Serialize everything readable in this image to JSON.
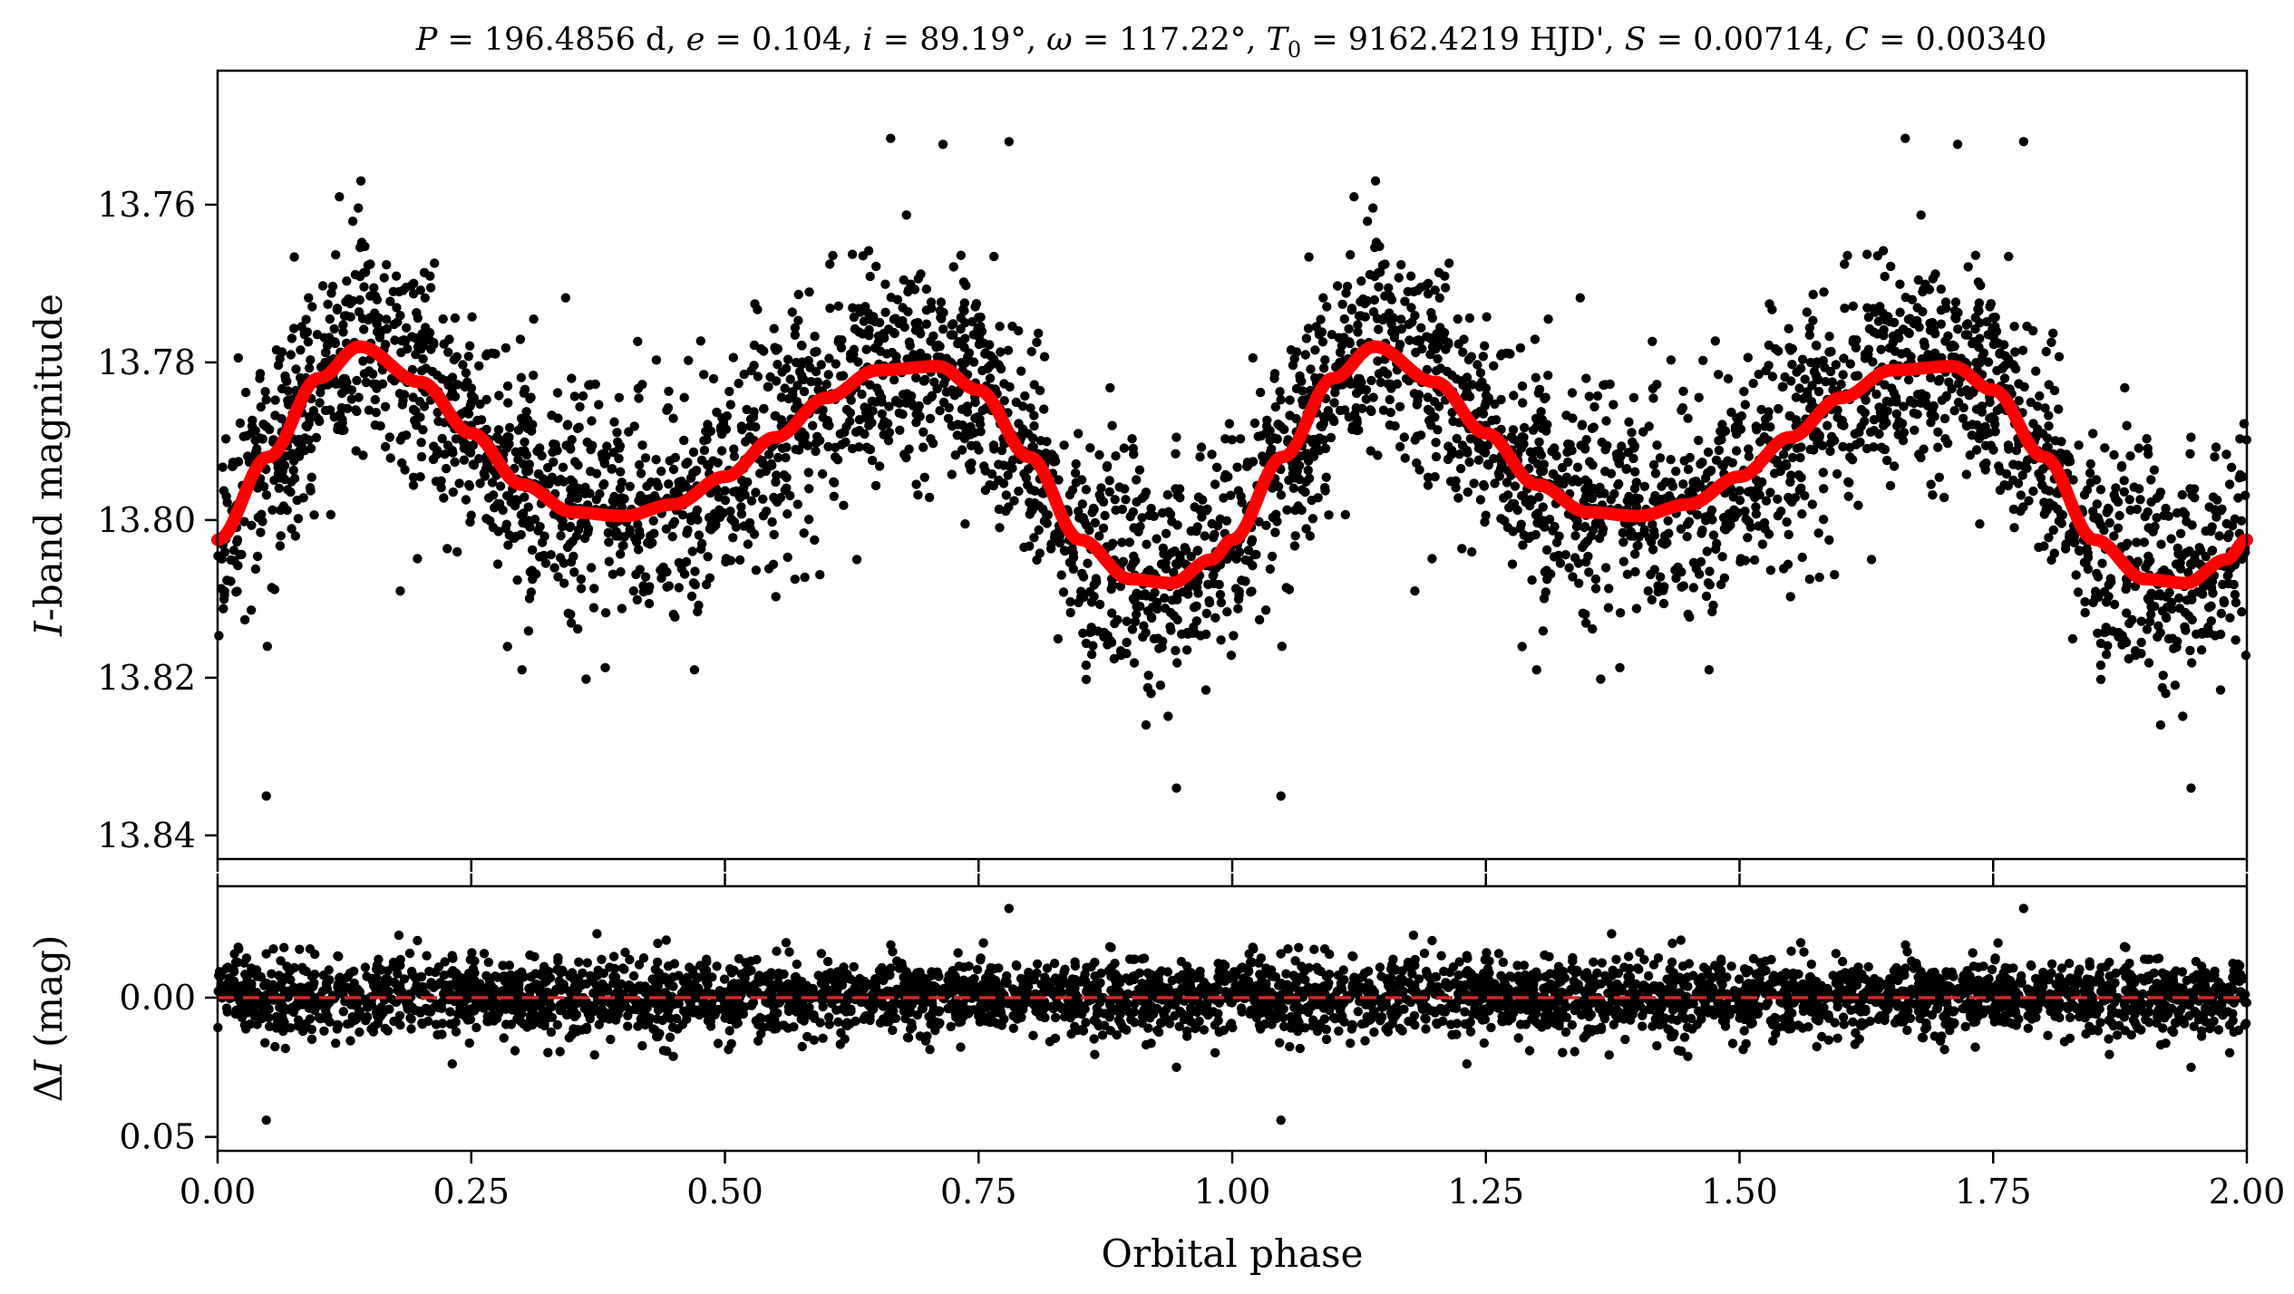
{
  "chart_data": [
    {
      "type": "scatter",
      "panel": "light-curve",
      "title": "P = 196.4856 d, e = 0.104, i = 89.19°, ω = 117.22°, T0 = 9162.4219 HJD', S = 0.00714, C = 0.00340",
      "title_parts": {
        "p_sym": "P",
        "p_val": " = 196.4856 d, ",
        "e_sym": "e",
        "e_val": " = 0.104, ",
        "i_sym": "i",
        "i_val": " = 89.19°, ",
        "w_sym": "ω",
        "w_val": " = 117.22°, ",
        "t_sym": "T",
        "t_sub": "0",
        "t_val": " = 9162.4219 HJD', ",
        "s_sym": "S",
        "s_val": " = 0.00714, ",
        "c_sym": "C",
        "c_val": " = 0.00340"
      },
      "xlabel": "Orbital phase",
      "ylabel": "I-band magnitude",
      "ylabel_parts": {
        "sym": "I",
        "rest": "-band magnitude"
      },
      "xlim": [
        0.0,
        2.0
      ],
      "ylim": [
        13.843,
        13.743
      ],
      "y_inverted": true,
      "x_ticks": [
        0.0,
        0.25,
        0.5,
        0.75,
        1.0,
        1.25,
        1.5,
        1.75,
        2.0
      ],
      "y_ticks": [
        13.76,
        13.78,
        13.8,
        13.82,
        13.84
      ],
      "y_tick_labels": [
        "13.76",
        "13.78",
        "13.80",
        "13.82",
        "13.84"
      ],
      "grid": false,
      "model_color": "#ff0000",
      "point_color": "#000000",
      "model": {
        "name": "",
        "x": [
          0.0,
          0.05,
          0.1,
          0.14,
          0.2,
          0.25,
          0.3,
          0.35,
          0.4,
          0.45,
          0.5,
          0.55,
          0.6,
          0.65,
          0.71,
          0.75,
          0.8,
          0.85,
          0.9,
          0.94,
          0.98,
          1.0,
          1.05,
          1.1,
          1.14,
          1.2,
          1.25,
          1.3,
          1.35,
          1.4,
          1.45,
          1.5,
          1.55,
          1.6,
          1.65,
          1.71,
          1.75,
          1.8,
          1.85,
          1.9,
          1.94,
          1.98,
          2.0
        ],
        "y": [
          13.8025,
          13.792,
          13.782,
          13.778,
          13.7825,
          13.789,
          13.7955,
          13.799,
          13.7995,
          13.798,
          13.7945,
          13.7895,
          13.7845,
          13.781,
          13.7805,
          13.7835,
          13.792,
          13.8025,
          13.8075,
          13.808,
          13.805,
          13.8025,
          13.792,
          13.782,
          13.778,
          13.7825,
          13.789,
          13.7955,
          13.799,
          13.7995,
          13.798,
          13.7945,
          13.7895,
          13.7845,
          13.781,
          13.7805,
          13.7835,
          13.792,
          13.8025,
          13.8075,
          13.808,
          13.805,
          13.8025
        ]
      },
      "points": {
        "name": "",
        "n_per_cycle": 2000,
        "scatter_sigma_mag": 0.007,
        "repeat_period_phase": 1.0,
        "outliers": [
          {
            "x": 0.048,
            "y": 13.835
          },
          {
            "x": 0.78,
            "y": 13.752
          },
          {
            "x": 0.945,
            "y": 13.834
          },
          {
            "x": 0.915,
            "y": 13.826
          },
          {
            "x": 0.92,
            "y": 13.822
          },
          {
            "x": 0.12,
            "y": 13.759
          },
          {
            "x": 0.3,
            "y": 13.819
          },
          {
            "x": 0.47,
            "y": 13.819
          },
          {
            "x": 0.18,
            "y": 13.809
          },
          {
            "x": 0.63,
            "y": 13.805
          }
        ]
      }
    },
    {
      "type": "scatter",
      "panel": "residuals",
      "xlabel": "Orbital phase",
      "ylabel": "ΔI (mag)",
      "ylabel_parts": {
        "delta": "Δ",
        "sym": "I",
        "rest": " (mag)"
      },
      "xlim": [
        0.0,
        2.0
      ],
      "ylim": [
        0.055,
        -0.04
      ],
      "y_inverted": true,
      "x_ticks": [
        0.0,
        0.25,
        0.5,
        0.75,
        1.0,
        1.25,
        1.5,
        1.75,
        2.0
      ],
      "x_tick_labels": [
        "0.00",
        "0.25",
        "0.50",
        "0.75",
        "1.00",
        "1.25",
        "1.50",
        "1.75",
        "2.00"
      ],
      "y_ticks": [
        0.0,
        0.05
      ],
      "y_tick_labels": [
        "0.00",
        "0.05"
      ],
      "zero_line": {
        "y": 0.0,
        "color": "#d62728",
        "style": "dashed"
      },
      "grid": false,
      "points": {
        "name": "",
        "n_per_cycle": 2000,
        "scatter_sigma_mag": 0.007,
        "outliers": [
          {
            "x": 0.048,
            "y": 0.044
          },
          {
            "x": 1.048,
            "y": 0.044
          },
          {
            "x": 0.78,
            "y": -0.032
          },
          {
            "x": 1.78,
            "y": -0.032
          },
          {
            "x": 0.945,
            "y": 0.025
          },
          {
            "x": 1.945,
            "y": 0.025
          }
        ]
      }
    }
  ]
}
